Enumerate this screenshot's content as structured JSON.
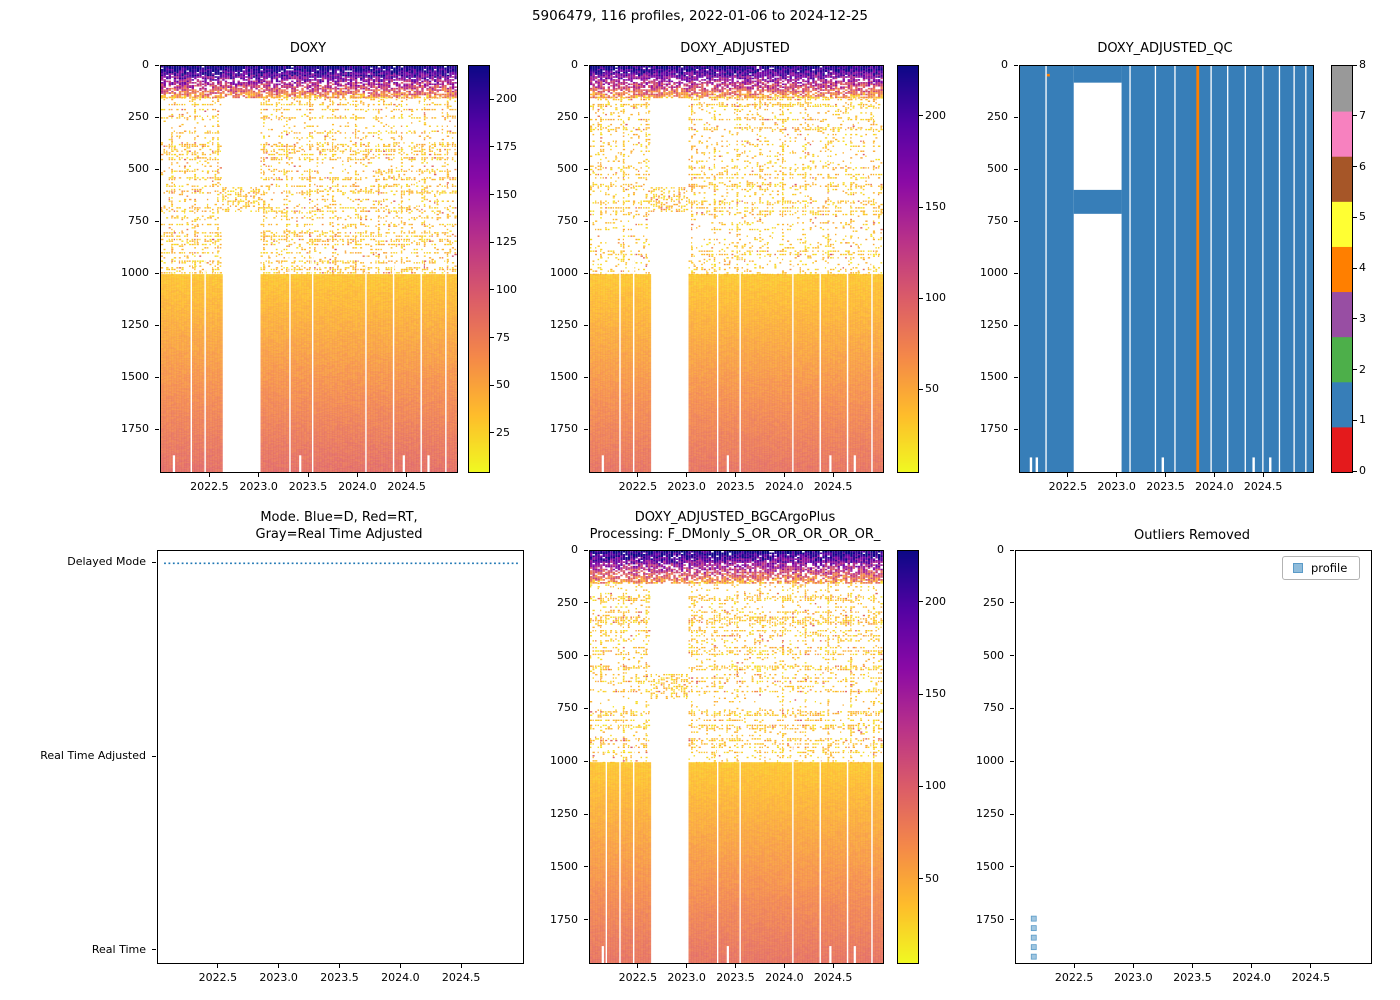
{
  "figure_title": "5906479, 116 profiles, 2022-01-06 to 2024-12-25",
  "colors": {
    "background": "#ffffff",
    "axis": "#000000",
    "mode_line_blue": "#1f77b4",
    "qc_flag_colors": [
      "#e41a1c",
      "#377eb8",
      "#4daf4a",
      "#984ea3",
      "#ff7f00",
      "#ffff33",
      "#a65628",
      "#f781bf",
      "#999999"
    ],
    "outlier_marker_fill": "#8fbcdb",
    "outlier_marker_edge": "#5b9bc8"
  },
  "chart_data": [
    {
      "id": "doxy",
      "type": "heatmap",
      "title": "DOXY",
      "x_range": [
        2022.0,
        2025.0
      ],
      "x_tick_labels": [
        "2022.5",
        "2023.0",
        "2023.5",
        "2024.0",
        "2024.5"
      ],
      "y_range": [
        0,
        1950
      ],
      "y_tick_labels": [
        "0",
        "250",
        "500",
        "750",
        "1000",
        "1250",
        "1500",
        "1750"
      ],
      "ylabel_meaning": "pressure_dbar",
      "colormap": "plasma_reversed",
      "colorbar": {
        "vmin": 5,
        "vmax": 218,
        "tick_labels": [
          "25",
          "50",
          "75",
          "100",
          "125",
          "150",
          "175",
          "200"
        ]
      },
      "n_profiles": 116,
      "surface_band": {
        "depth": [
          0,
          150
        ],
        "value_surface": 228,
        "value_deep": 55
      },
      "sparse_band": {
        "depth": [
          150,
          1000
        ],
        "value_range": [
          15,
          52
        ],
        "density": 0.2
      },
      "deep_band": {
        "depth": [
          1000,
          1950
        ],
        "value_top": 32,
        "value_bottom": 88
      },
      "data_gap": {
        "x": [
          2022.62,
          2023.02
        ],
        "surface_depth": 150,
        "mid_band_depth": [
          580,
          700
        ]
      },
      "missing_profiles_x": [
        2022.3,
        2022.44,
        2023.3,
        2023.53,
        2024.07,
        2024.35,
        2024.63,
        2024.88
      ],
      "bottom_gaps_x": [
        2022.12,
        2023.4,
        2024.45,
        2024.7
      ],
      "seed": 7
    },
    {
      "id": "doxy_adjusted",
      "type": "heatmap",
      "title": "DOXY_ADJUSTED",
      "x_range": [
        2022.0,
        2025.0
      ],
      "x_tick_labels": [
        "2022.5",
        "2023.0",
        "2023.5",
        "2024.0",
        "2024.5"
      ],
      "y_range": [
        0,
        1950
      ],
      "y_tick_labels": [
        "0",
        "250",
        "500",
        "750",
        "1000",
        "1250",
        "1500",
        "1750"
      ],
      "colormap": "plasma_reversed",
      "colorbar": {
        "vmin": 5,
        "vmax": 228,
        "tick_labels": [
          "50",
          "100",
          "150",
          "200"
        ]
      },
      "n_profiles": 116,
      "surface_band": {
        "depth": [
          0,
          150
        ],
        "value_surface": 228,
        "value_deep": 55
      },
      "sparse_band": {
        "depth": [
          150,
          1000
        ],
        "value_range": [
          15,
          52
        ],
        "density": 0.2
      },
      "deep_band": {
        "depth": [
          1000,
          1950
        ],
        "value_top": 32,
        "value_bottom": 88
      },
      "data_gap": {
        "x": [
          2022.62,
          2023.02
        ],
        "surface_depth": 150,
        "mid_band_depth": [
          580,
          700
        ]
      },
      "missing_profiles_x": [
        2022.3,
        2022.44,
        2023.3,
        2023.53,
        2024.07,
        2024.35,
        2024.63,
        2024.88
      ],
      "bottom_gaps_x": [
        2022.12,
        2023.4,
        2024.45,
        2024.7
      ],
      "seed": 11
    },
    {
      "id": "doxy_adjusted_qc",
      "type": "heatmap_qc",
      "title": "DOXY_ADJUSTED_QC",
      "x_range": [
        2022.0,
        2025.0
      ],
      "x_tick_labels": [
        "2022.5",
        "2023.0",
        "2023.5",
        "2024.0",
        "2024.5"
      ],
      "y_range": [
        0,
        1950
      ],
      "y_tick_labels": [
        "0",
        "250",
        "500",
        "750",
        "1000",
        "1250",
        "1500",
        "1750"
      ],
      "colorbar": {
        "tick_labels": [
          "0",
          "1",
          "2",
          "3",
          "4",
          "5",
          "6",
          "7",
          "8"
        ]
      },
      "dominant_flag": 1,
      "gap": {
        "x": [
          2022.55,
          2023.04
        ],
        "surface_depth": 80,
        "mid_band_depth": [
          595,
          710
        ]
      },
      "orange_line_x": 2023.82,
      "orange_line_flag": 4,
      "orange_mark": {
        "x": 2022.29,
        "depth": 38
      },
      "missing_profiles_x": [
        2022.26,
        2023.12,
        2023.38,
        2023.58,
        2023.95,
        2024.12,
        2024.3,
        2024.48,
        2024.65,
        2024.8,
        2024.92
      ],
      "bottom_gaps_x": [
        2022.1,
        2022.16,
        2023.45,
        2024.38,
        2024.55
      ]
    },
    {
      "id": "mode",
      "type": "line",
      "title": "Mode. Blue=D, Red=RT,\nGray=Real Time Adjusted",
      "x_range": [
        2022.0,
        2025.0
      ],
      "x_tick_labels": [
        "2022.5",
        "2023.0",
        "2023.5",
        "2024.0",
        "2024.5"
      ],
      "y_categories": [
        "Delayed Mode",
        "Real Time Adjusted",
        "Real Time"
      ],
      "series": [
        {
          "name": "mode",
          "color": "#1f77b4",
          "style": "dotted",
          "y_category": "Delayed Mode",
          "x_start": 2022.05,
          "x_end": 2024.97
        }
      ]
    },
    {
      "id": "doxy_adjusted_bgcargoplus",
      "type": "heatmap",
      "title": "DOXY_ADJUSTED_BGCArgoPlus\nProcessing: F_DMonly_S_OR_OR_OR_OR_OR_",
      "x_range": [
        2022.0,
        2025.0
      ],
      "x_tick_labels": [
        "2022.5",
        "2023.0",
        "2023.5",
        "2024.0",
        "2024.5"
      ],
      "y_range": [
        0,
        1950
      ],
      "y_tick_labels": [
        "0",
        "250",
        "500",
        "750",
        "1000",
        "1250",
        "1500",
        "1750"
      ],
      "colormap": "plasma_reversed",
      "colorbar": {
        "vmin": 5,
        "vmax": 228,
        "tick_labels": [
          "50",
          "100",
          "150",
          "200"
        ]
      },
      "n_profiles": 116,
      "surface_band": {
        "depth": [
          0,
          150
        ],
        "value_surface": 228,
        "value_deep": 55
      },
      "sparse_band": {
        "depth": [
          150,
          1000
        ],
        "value_range": [
          15,
          52
        ],
        "density": 0.2
      },
      "deep_band": {
        "depth": [
          1000,
          1950
        ],
        "value_top": 32,
        "value_bottom": 88
      },
      "data_gap": {
        "x": [
          2022.62,
          2023.02
        ],
        "surface_depth": 150,
        "mid_band_depth": [
          580,
          700
        ]
      },
      "missing_profiles_x": [
        2022.16,
        2022.3,
        2022.44,
        2023.3,
        2023.53,
        2024.07,
        2024.35,
        2024.63,
        2024.88
      ],
      "bottom_gaps_x": [
        2022.12,
        2023.4,
        2024.45,
        2024.7
      ],
      "seed": 13
    },
    {
      "id": "outliers_removed",
      "type": "scatter",
      "title": "Outliers Removed",
      "x_range": [
        2022.0,
        2025.0
      ],
      "x_tick_labels": [
        "2022.5",
        "2023.0",
        "2023.5",
        "2024.0",
        "2024.5"
      ],
      "y_range": [
        0,
        1950
      ],
      "y_tick_labels": [
        "0",
        "250",
        "500",
        "750",
        "1000",
        "1250",
        "1500",
        "1750"
      ],
      "legend": {
        "label": "profile"
      },
      "points": [
        {
          "x": 2022.15,
          "y": 1740
        },
        {
          "x": 2022.15,
          "y": 1785
        },
        {
          "x": 2022.15,
          "y": 1830
        },
        {
          "x": 2022.15,
          "y": 1875
        },
        {
          "x": 2022.15,
          "y": 1920
        }
      ]
    }
  ]
}
